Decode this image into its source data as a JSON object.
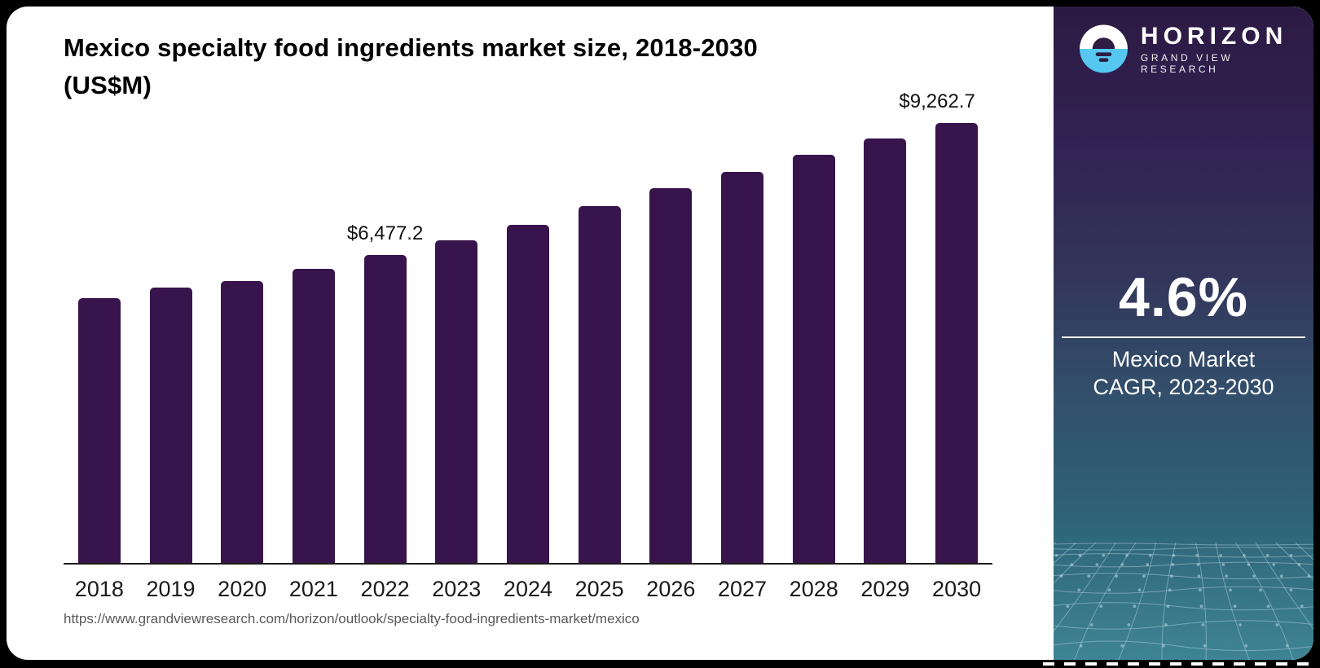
{
  "header": {
    "title_line1": "Mexico specialty food ingredients market size, 2018-2030",
    "title_line2": "(US$M)"
  },
  "chart_data": {
    "type": "bar",
    "title": "Mexico specialty food ingredients market size, 2018-2030 (US$M)",
    "categories": [
      "2018",
      "2019",
      "2020",
      "2021",
      "2022",
      "2023",
      "2024",
      "2025",
      "2026",
      "2027",
      "2028",
      "2029",
      "2030"
    ],
    "values": [
      5570,
      5795,
      5935,
      6190,
      6477.2,
      6790,
      7115,
      7510,
      7890,
      8230,
      8590,
      8935,
      9262.7
    ],
    "value_labels": [
      "",
      "",
      "",
      "",
      "$6,477.2",
      "",
      "",
      "",
      "",
      "",
      "",
      "",
      "$9,262.7"
    ],
    "xlabel": "",
    "ylabel": "US$M",
    "ylim": [
      0,
      9262.7
    ],
    "grid": false,
    "legend": "none",
    "bar_color": "#38144c"
  },
  "footer": {
    "source_url": "https://www.grandviewresearch.com/horizon/outlook/specialty-food-ingredients-market/mexico"
  },
  "sidebar": {
    "logo": {
      "brand": "HORIZON",
      "sub_brand": "GRAND VIEW RESEARCH",
      "icon_colors": {
        "top": "#ffffff",
        "bottom": "#55c7f0",
        "mark": "#2e1c44"
      }
    },
    "stat": {
      "value": "4.6%",
      "label_line1": "Mexico Market",
      "label_line2": "CAGR, 2023-2030"
    },
    "colors": {
      "gradient_top": "#2c1a43",
      "gradient_mid": "#333459",
      "gradient_bottom": "#3e8495",
      "mesh_line": "rgba(190,220,230,0.45)"
    }
  }
}
